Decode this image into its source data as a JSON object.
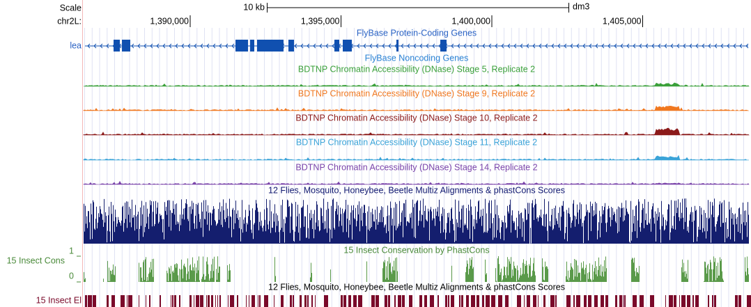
{
  "scale": {
    "label": "Scale",
    "span": "10 kb",
    "assembly": "dm3"
  },
  "position": {
    "chrom": "chr2L:",
    "ticks": [
      "1,390,000",
      "1,395,000",
      "1,400,000",
      "1,405,000"
    ]
  },
  "tracks": [
    {
      "title": "FlyBase Protein-Coding Genes",
      "label": "lea"
    },
    {
      "title": "FlyBase Noncoding Genes"
    },
    {
      "title": "BDTNP Chromatin Accessibility (DNase) Stage 5, Replicate 2"
    },
    {
      "title": "BDTNP Chromatin Accessibility (DNase) Stage 9, Replicate 2"
    },
    {
      "title": "BDTNP Chromatin Accessibility (DNase) Stage 10, Replicate 2"
    },
    {
      "title": "BDTNP Chromatin Accessibility (DNase) Stage 11, Replicate 2"
    },
    {
      "title": "BDTNP Chromatin Accessibility (DNase) Stage 14, Replicate 2"
    },
    {
      "title": "12 Flies, Mosquito, Honeybee, Beetle Multiz Alignments & phastCons Scores"
    },
    {
      "title": "15 Insect Conservation by PhastCons",
      "label": "15 Insect Cons",
      "ymax": "1",
      "ymin": "0"
    },
    {
      "title": "12 Flies, Mosquito, Honeybee, Beetle Multiz Alignments & phastCons Scores",
      "label": "15 Insect El"
    }
  ]
}
